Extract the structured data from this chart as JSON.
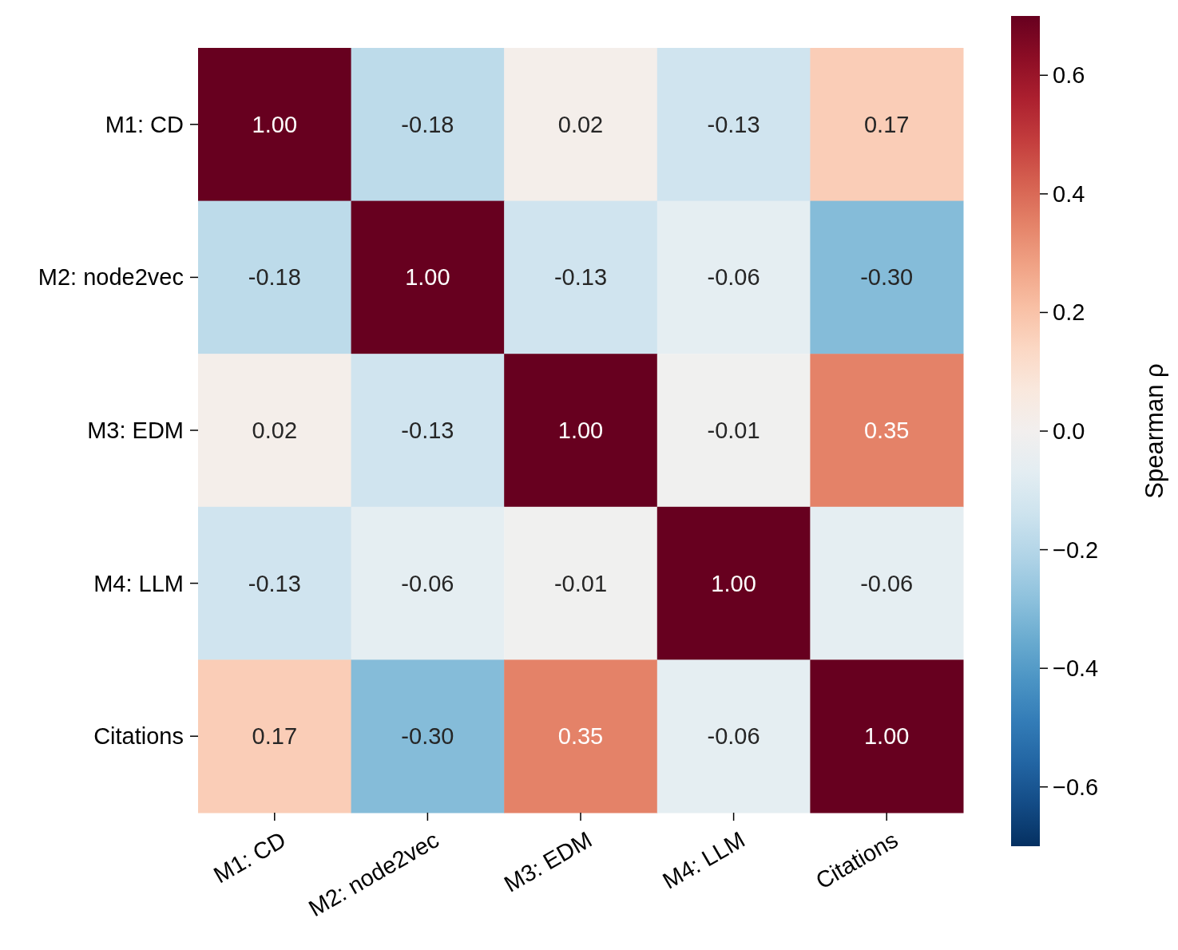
{
  "chart_data": {
    "type": "heatmap",
    "clabel": "Spearman ρ",
    "categories": [
      "M1: CD",
      "M2: node2vec",
      "M3: EDM",
      "M4: LLM",
      "Citations"
    ],
    "y_categories": [
      "M1: CD",
      "M2: node2vec",
      "M3: EDM",
      "M4: LLM",
      "Citations"
    ],
    "cells": [
      [
        1.0,
        -0.18,
        0.02,
        -0.13,
        0.17
      ],
      [
        -0.18,
        1.0,
        -0.13,
        -0.06,
        -0.3
      ],
      [
        0.02,
        -0.13,
        1.0,
        -0.01,
        0.35
      ],
      [
        -0.13,
        -0.06,
        -0.01,
        1.0,
        -0.06
      ],
      [
        0.17,
        -0.3,
        0.35,
        -0.06,
        1.0
      ]
    ],
    "cell_labels": [
      [
        "1.00",
        "-0.18",
        "0.02",
        "-0.13",
        "0.17"
      ],
      [
        "-0.18",
        "1.00",
        "-0.13",
        "-0.06",
        "-0.30"
      ],
      [
        "0.02",
        "-0.13",
        "1.00",
        "-0.01",
        "0.35"
      ],
      [
        "-0.13",
        "-0.06",
        "-0.01",
        "1.00",
        "-0.06"
      ],
      [
        "0.17",
        "-0.30",
        "0.35",
        "-0.06",
        "1.00"
      ]
    ],
    "clim": [
      -0.7,
      0.7
    ],
    "cticks": [
      {
        "value": -0.6,
        "label": "−0.6"
      },
      {
        "value": -0.4,
        "label": "−0.4"
      },
      {
        "value": -0.2,
        "label": "−0.2"
      },
      {
        "value": 0,
        "label": "0.0"
      },
      0.2,
      0.4,
      0.6
    ]
  }
}
